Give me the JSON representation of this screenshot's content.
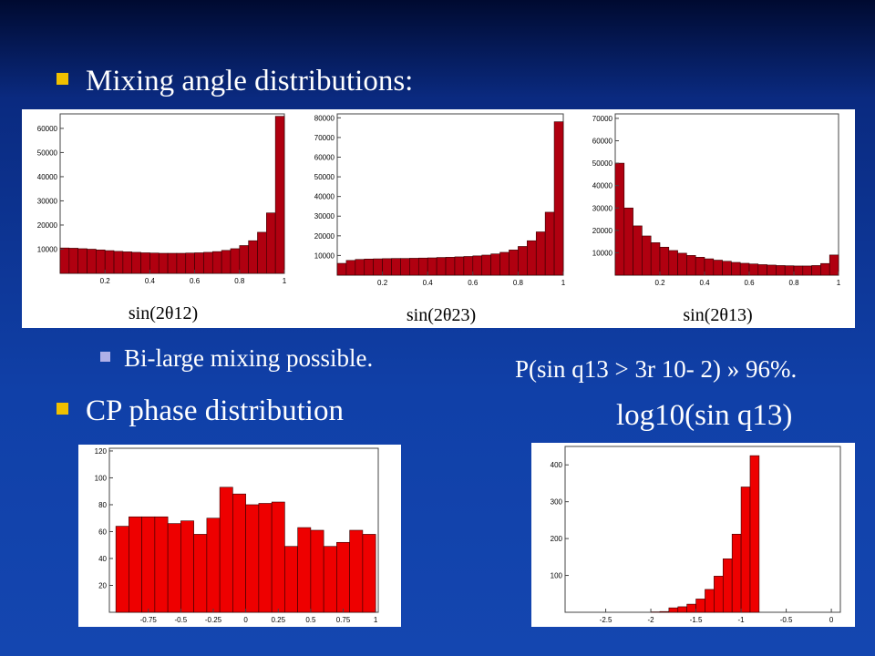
{
  "bullets": [
    "Mixing angle distributions:",
    "Bi-large mixing possible.",
    "CP phase distribution"
  ],
  "annotations": [
    "P(sin q13 > 3r 10- 2) » 96%.",
    "log10(sin q13)"
  ],
  "chart_data": [
    {
      "type": "histogram",
      "xlabel": "sin(2θ12)",
      "color": "#b00010",
      "xlim": [
        0,
        1
      ],
      "ylim": [
        0,
        66000
      ],
      "xticks": [
        0.2,
        0.4,
        0.6,
        0.8,
        1
      ],
      "yticks": [
        10000,
        20000,
        30000,
        40000,
        50000,
        60000
      ],
      "bins": [
        0,
        0.04,
        0.08,
        0.12,
        0.16,
        0.2,
        0.24,
        0.28,
        0.32,
        0.36,
        0.4,
        0.44,
        0.48,
        0.52,
        0.56,
        0.6,
        0.64,
        0.68,
        0.72,
        0.76,
        0.8,
        0.84,
        0.88,
        0.92,
        0.96,
        1
      ],
      "values": [
        10500,
        10400,
        10200,
        10000,
        9700,
        9400,
        9100,
        8900,
        8700,
        8500,
        8400,
        8300,
        8300,
        8300,
        8400,
        8500,
        8700,
        9000,
        9500,
        10200,
        11500,
        13500,
        17000,
        25000,
        65000
      ]
    },
    {
      "type": "histogram",
      "xlabel": "sin(2θ23)",
      "color": "#b00010",
      "xlim": [
        0,
        1
      ],
      "ylim": [
        0,
        82000
      ],
      "xticks": [
        0.2,
        0.4,
        0.6,
        0.8,
        1
      ],
      "yticks": [
        10000,
        20000,
        30000,
        40000,
        50000,
        60000,
        70000,
        80000
      ],
      "bins": [
        0,
        0.04,
        0.08,
        0.12,
        0.16,
        0.2,
        0.24,
        0.28,
        0.32,
        0.36,
        0.4,
        0.44,
        0.48,
        0.52,
        0.56,
        0.6,
        0.64,
        0.68,
        0.72,
        0.76,
        0.8,
        0.84,
        0.88,
        0.92,
        0.96,
        1
      ],
      "values": [
        6000,
        7500,
        8000,
        8200,
        8300,
        8400,
        8500,
        8500,
        8600,
        8700,
        8800,
        9000,
        9100,
        9300,
        9500,
        9800,
        10200,
        10800,
        11600,
        12800,
        14600,
        17500,
        22000,
        32000,
        78000
      ]
    },
    {
      "type": "histogram",
      "xlabel": "sin(2θ13)",
      "color": "#b00010",
      "xlim": [
        0,
        1
      ],
      "ylim": [
        0,
        72000
      ],
      "xticks": [
        0.2,
        0.4,
        0.6,
        0.8,
        1
      ],
      "yticks": [
        10000,
        20000,
        30000,
        40000,
        50000,
        60000,
        70000
      ],
      "bins": [
        0,
        0.04,
        0.08,
        0.12,
        0.16,
        0.2,
        0.24,
        0.28,
        0.32,
        0.36,
        0.4,
        0.44,
        0.48,
        0.52,
        0.56,
        0.6,
        0.64,
        0.68,
        0.72,
        0.76,
        0.8,
        0.84,
        0.88,
        0.92,
        0.96,
        1
      ],
      "values": [
        50000,
        30000,
        22000,
        17500,
        14500,
        12500,
        11000,
        9800,
        8800,
        8000,
        7300,
        6700,
        6200,
        5700,
        5300,
        5000,
        4700,
        4500,
        4300,
        4200,
        4100,
        4100,
        4300,
        5200,
        9000
      ]
    },
    {
      "type": "histogram",
      "color": "#ee0000",
      "xlim": [
        -1.05,
        1.02
      ],
      "ylim": [
        0,
        122
      ],
      "xticks": [
        -0.75,
        -0.5,
        -0.25,
        0,
        0.25,
        0.5,
        0.75,
        1
      ],
      "yticks": [
        20,
        40,
        60,
        80,
        100,
        120
      ],
      "bins": [
        -1,
        -0.9,
        -0.8,
        -0.7,
        -0.6,
        -0.5,
        -0.4,
        -0.3,
        -0.2,
        -0.1,
        0,
        0.1,
        0.2,
        0.3,
        0.4,
        0.5,
        0.6,
        0.7,
        0.8,
        0.9,
        1
      ],
      "values": [
        64,
        71,
        71,
        71,
        66,
        68,
        58,
        70,
        93,
        88,
        80,
        81,
        82,
        49,
        63,
        61,
        49,
        52,
        61,
        58
      ]
    },
    {
      "type": "histogram",
      "color": "#ee0000",
      "xlim": [
        -2.95,
        0.1
      ],
      "ylim": [
        0,
        450
      ],
      "xticks": [
        -2.5,
        -2,
        -1.5,
        -1,
        -0.5,
        0
      ],
      "yticks": [
        100,
        200,
        300,
        400
      ],
      "bins": [
        -2.0,
        -1.9,
        -1.8,
        -1.7,
        -1.6,
        -1.5,
        -1.4,
        -1.3,
        -1.2,
        -1.1,
        -1.0,
        -0.9,
        -0.8
      ],
      "values": [
        1,
        2,
        12,
        15,
        22,
        36,
        62,
        98,
        145,
        212,
        340,
        425
      ]
    }
  ]
}
